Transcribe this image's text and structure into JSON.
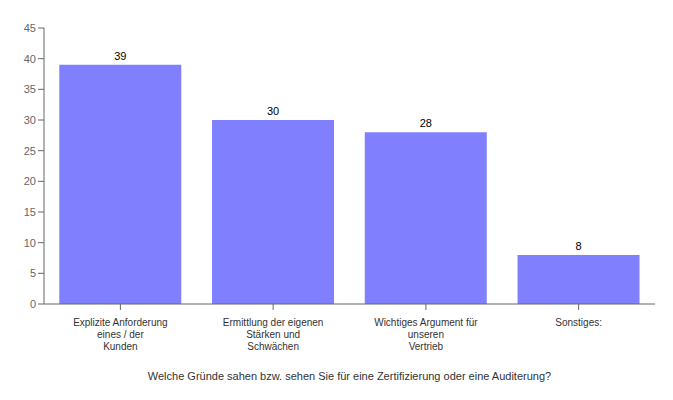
{
  "chart_data": {
    "type": "bar",
    "categories": [
      "Explizite Anforderung eines / der\nKunden",
      "Ermittlung der eigenen Stärken und\nSchwächen",
      "Wichtiges Argument für unseren\nVertrieb",
      "Sonstiges:"
    ],
    "values": [
      39,
      30,
      28,
      8
    ],
    "color": "#8080ff",
    "xlabel": "Welche Gründe sahen bzw. sehen Sie für eine Zertifizierung oder eine Auditerung?",
    "ylim": [
      0,
      45
    ],
    "yticks": [
      0,
      5,
      10,
      15,
      20,
      25,
      30,
      35,
      40,
      45
    ],
    "grid": false,
    "data_labels": true
  }
}
